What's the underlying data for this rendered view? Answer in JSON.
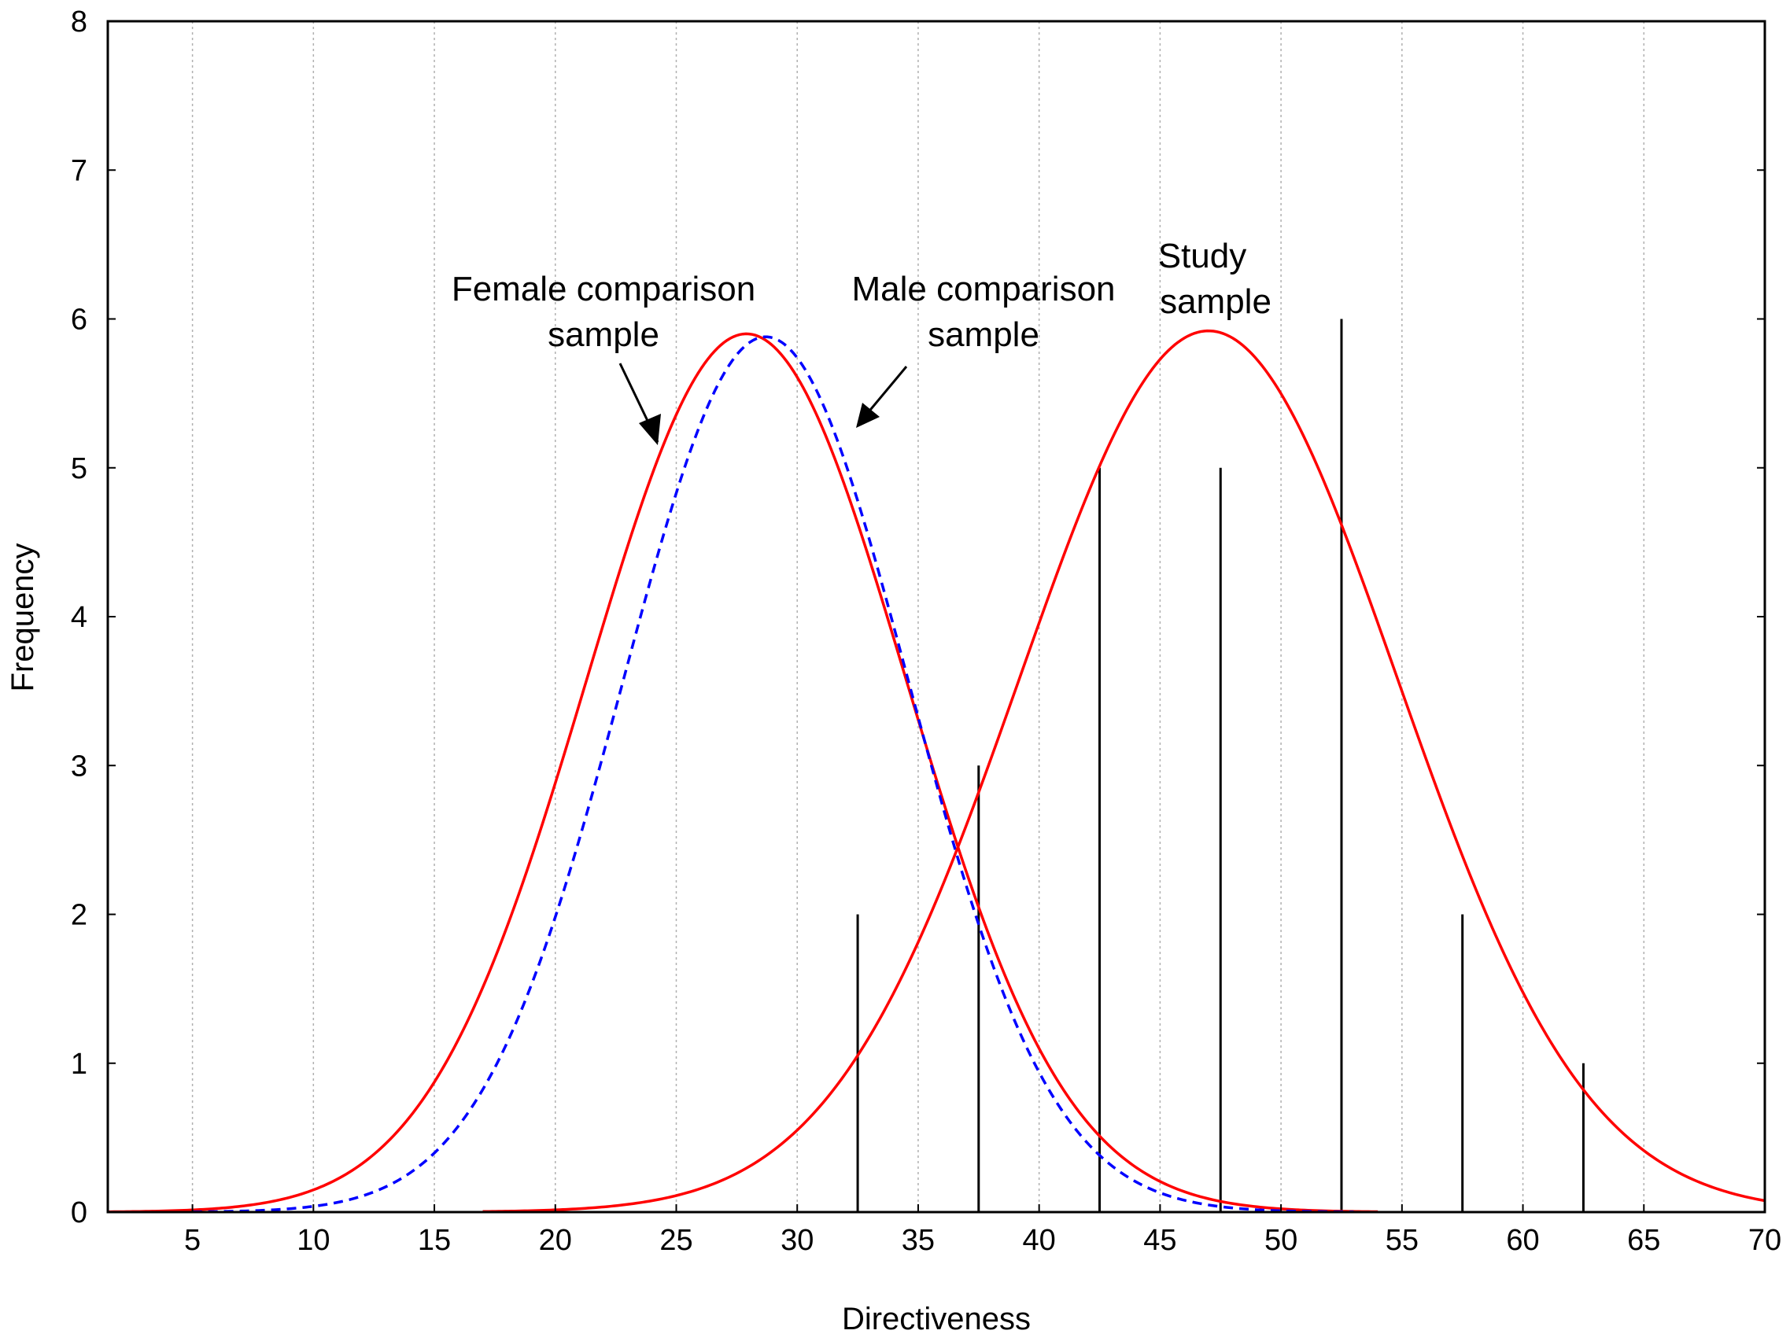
{
  "chart_data": {
    "type": "line",
    "title": "",
    "xlabel": "Directiveness",
    "ylabel": "Frequency",
    "xlim": [
      1.5,
      70
    ],
    "ylim": [
      0,
      8
    ],
    "grid": "vertical dotted at x ticks",
    "x_ticks": [
      5,
      10,
      15,
      20,
      25,
      30,
      35,
      40,
      45,
      50,
      55,
      60,
      65,
      70
    ],
    "y_ticks": [
      0,
      1,
      2,
      3,
      4,
      5,
      6,
      7,
      8
    ],
    "histogram": {
      "name": "Study sample (observed)",
      "x": [
        32.5,
        37.5,
        42.5,
        47.5,
        52.5,
        57.5,
        62.5
      ],
      "values": [
        2,
        3,
        5,
        5,
        6,
        2,
        1
      ]
    },
    "series": [
      {
        "name": "Female comparison sample",
        "style": "solid",
        "color": "#ff0000",
        "mean": 27.9,
        "peak": 5.9,
        "sd": 6.6,
        "x_range": [
          1.5,
          54
        ]
      },
      {
        "name": "Male comparison sample",
        "style": "dashed",
        "color": "#0000ff",
        "mean": 28.7,
        "peak": 5.88,
        "sd": 5.9,
        "x_range": [
          5,
          53
        ]
      },
      {
        "name": "Study sample",
        "style": "solid",
        "color": "#ff0000",
        "mean": 47,
        "peak": 5.92,
        "sd": 7.8,
        "x_range": [
          17,
          70
        ]
      }
    ],
    "annotations": {
      "female": [
        "Female comparison",
        "sample"
      ],
      "male": [
        "Male comparison",
        "sample"
      ],
      "study": [
        "Study",
        "sample"
      ]
    }
  }
}
